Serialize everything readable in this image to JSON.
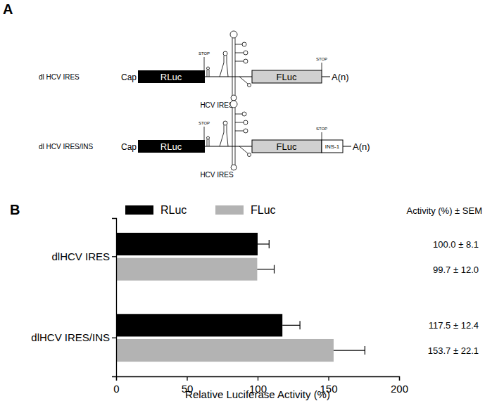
{
  "panel_labels": [
    "A",
    "B"
  ],
  "panel_a": {
    "constructs": [
      {
        "name": "dl HCV IRES",
        "cap": "Cap",
        "orf1": "RLuc",
        "stop1": "STOP",
        "ires": "HCV IRES",
        "orf2": "FLuc",
        "stop2": "STOP",
        "polyA": "A(n)"
      },
      {
        "name": "dl HCV IRES/INS",
        "cap": "Cap",
        "orf1": "RLuc",
        "stop1": "STOP",
        "ires": "HCV IRES",
        "orf2": "FLuc",
        "stop2": "STOP",
        "insert": "INS-1",
        "polyA": "A(n)"
      }
    ]
  },
  "chart_data": {
    "type": "bar",
    "orientation": "horizontal",
    "categories": [
      "dlHCV IRES",
      "dlHCV IRES/INS"
    ],
    "series": [
      {
        "name": "RLuc",
        "color": "#000000",
        "values": [
          100.0,
          117.5
        ],
        "errors": [
          8.1,
          12.4
        ],
        "value_labels": [
          "100.0 ± 8.1",
          "117.5 ± 12.4"
        ]
      },
      {
        "name": "FLuc",
        "color": "#b3b3b3",
        "values": [
          99.7,
          153.7
        ],
        "errors": [
          12.0,
          22.1
        ],
        "value_labels": [
          "99.7 ± 12.0",
          "153.7 ± 22.1"
        ]
      }
    ],
    "xlabel": "Relative Luciferase Activity (%)",
    "xlim": [
      0,
      200
    ],
    "xticks": [
      0,
      50,
      100,
      150,
      200
    ],
    "legend": "top",
    "grid": false,
    "annotation": "Activity (%) ± SEM"
  }
}
